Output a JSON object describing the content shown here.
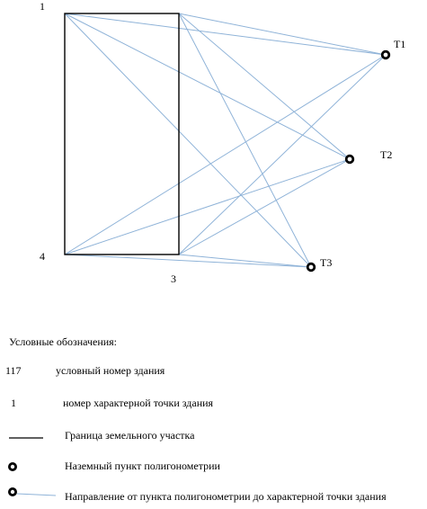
{
  "colors": {
    "boundary": "#000000",
    "sight_lines": "#8fb3d8",
    "station": "#000000"
  },
  "diagram": {
    "points": [
      {
        "label": "1",
        "role": "building-corner"
      },
      {
        "label": "",
        "role": "building-corner"
      },
      {
        "label": "3",
        "role": "building-corner"
      },
      {
        "label": "4",
        "role": "building-corner"
      }
    ],
    "stations": [
      {
        "label": "T1"
      },
      {
        "label": "T2"
      },
      {
        "label": "T3"
      }
    ]
  },
  "legend": {
    "title": "Условные обозначения:",
    "items": [
      {
        "symbol": "117",
        "text": "условный номер здания",
        "icon": "number-text"
      },
      {
        "symbol": "1",
        "text": "номер характерной точки здания",
        "icon": "number-text"
      },
      {
        "symbol": "",
        "text": "Граница земельного участка",
        "icon": "black-line"
      },
      {
        "symbol": "",
        "text": "Наземный пункт полигонометрии",
        "icon": "ring-marker"
      },
      {
        "symbol": "",
        "text": "Направление от пункта полигонометрии до характерной точки здания",
        "icon": "ring-with-line"
      }
    ]
  }
}
